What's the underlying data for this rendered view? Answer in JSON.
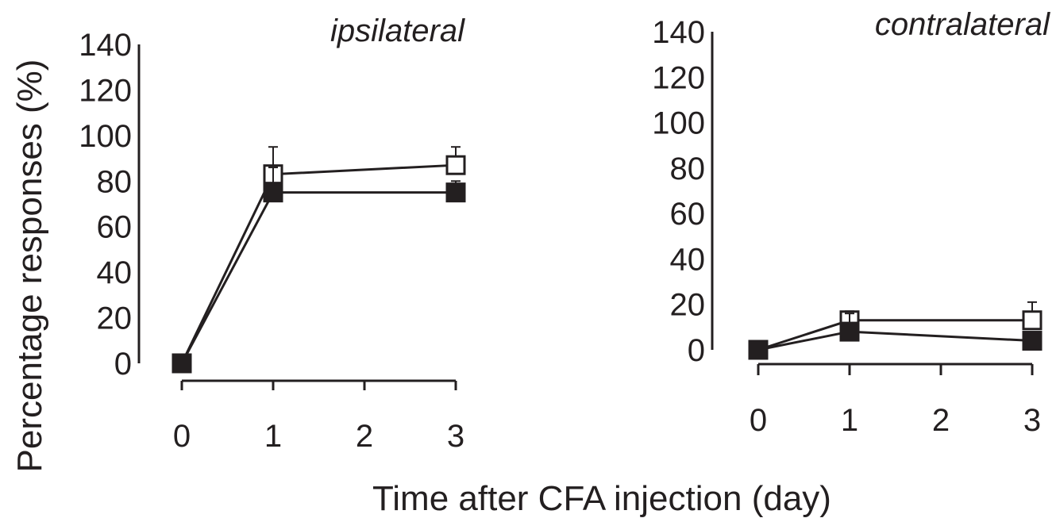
{
  "chart_data": [
    {
      "type": "line",
      "title": "ipsilateral",
      "xlabel": "Time after CFA injection (day)",
      "ylabel": "Percentage responses (%)",
      "x": [
        0,
        1,
        3
      ],
      "xticks": [
        0,
        1,
        2,
        3
      ],
      "xlim": [
        0,
        3
      ],
      "ylim": [
        0,
        140
      ],
      "yticks": [
        0,
        20,
        40,
        60,
        80,
        100,
        120,
        140
      ],
      "grid": false,
      "series": [
        {
          "marker": "open-square",
          "color": "#231f20",
          "values": [
            0,
            83,
            87
          ],
          "errors": [
            0,
            12,
            8
          ]
        },
        {
          "marker": "filled-square",
          "color": "#231f20",
          "values": [
            0,
            75,
            75
          ],
          "errors": [
            0,
            11,
            5
          ]
        }
      ]
    },
    {
      "type": "line",
      "title": "contralateral",
      "x": [
        0,
        1,
        3
      ],
      "xticks": [
        0,
        1,
        2,
        3
      ],
      "xlim": [
        0,
        3
      ],
      "ylim": [
        0,
        140
      ],
      "yticks": [
        0,
        20,
        40,
        60,
        80,
        100,
        120,
        140
      ],
      "grid": false,
      "series": [
        {
          "marker": "open-square",
          "color": "#231f20",
          "values": [
            0,
            13,
            13
          ],
          "errors": [
            0,
            4,
            8
          ]
        },
        {
          "marker": "filled-square",
          "color": "#231f20",
          "values": [
            0,
            8,
            4
          ],
          "errors": [
            0,
            8,
            3
          ]
        }
      ]
    }
  ]
}
